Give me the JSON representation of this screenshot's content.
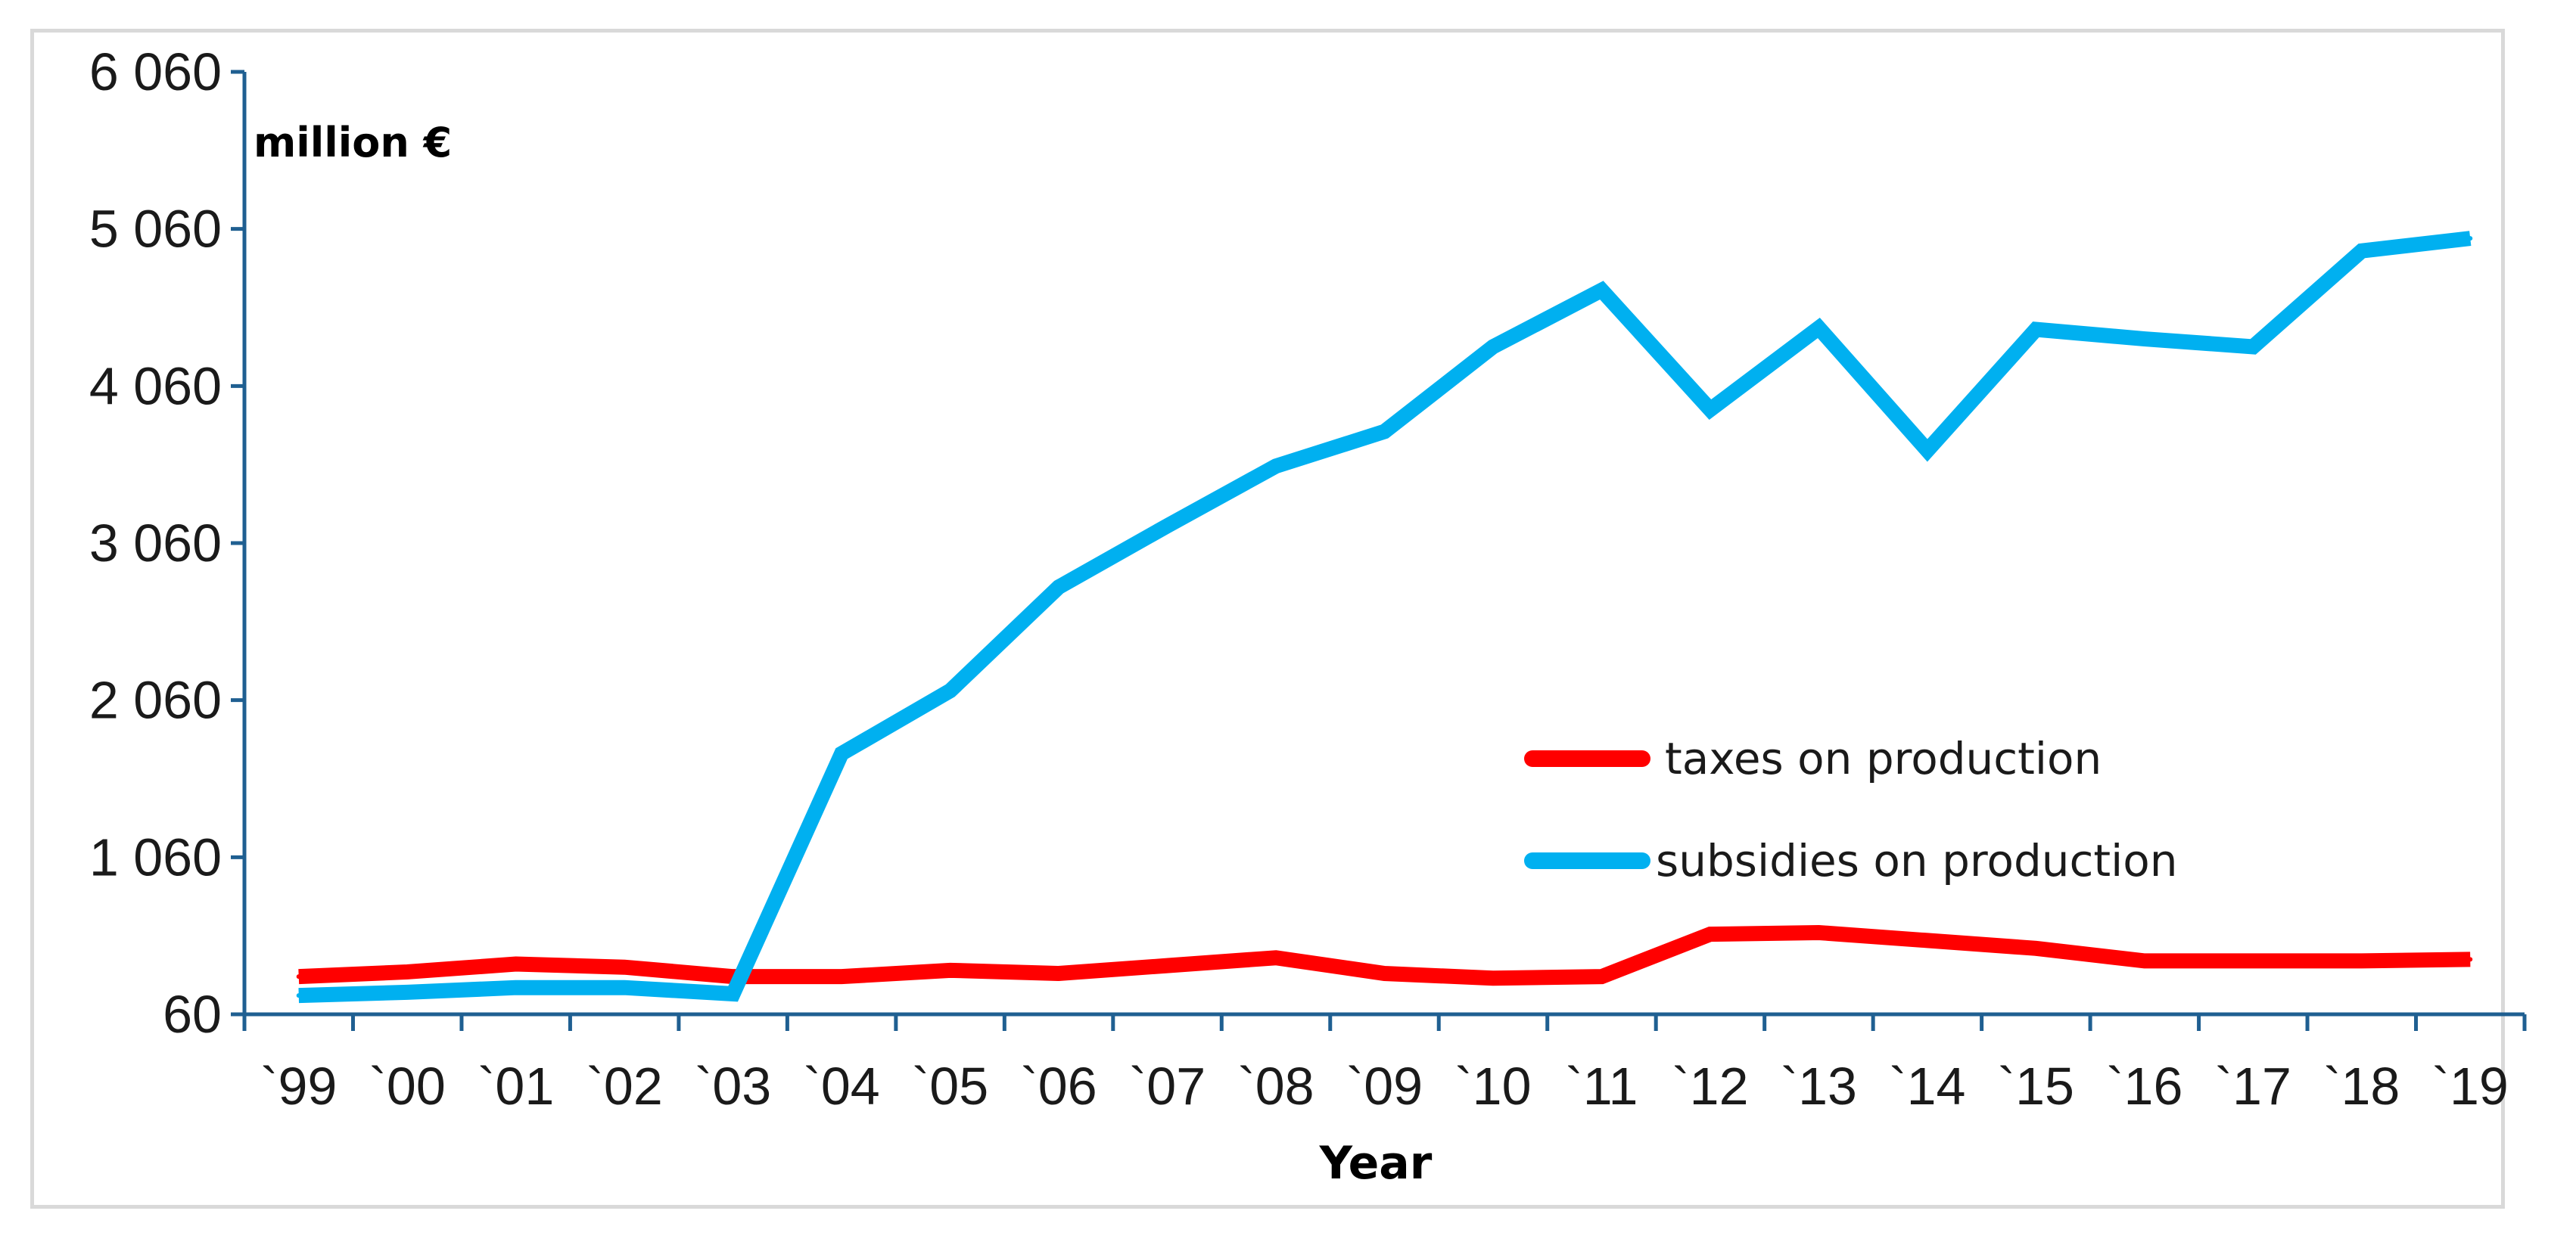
{
  "chart_data": {
    "type": "line",
    "title": "",
    "unit_label": "million €",
    "xlabel": "Year",
    "ylabel": "million €",
    "ylim": [
      60,
      6060
    ],
    "y_ticks": [
      60,
      1060,
      2060,
      3060,
      4060,
      5060,
      6060
    ],
    "y_tick_labels": [
      "60",
      "1 060",
      "2 060",
      "3 060",
      "4 060",
      "5 060",
      "6 060"
    ],
    "categories": [
      "`99",
      "`00",
      "`01",
      "`02",
      "`03",
      "`04",
      "`05",
      "`06",
      "`07",
      "`08",
      "`09",
      "`10",
      "`11",
      "`12",
      "`13",
      "`14",
      "`15",
      "`16",
      "`17",
      "`18",
      "`19"
    ],
    "grid": false,
    "legend_position": "center-right",
    "series": [
      {
        "name": "taxes on production",
        "color": "#ff0000",
        "values": [
          300,
          330,
          380,
          360,
          300,
          300,
          340,
          320,
          370,
          420,
          320,
          290,
          300,
          570,
          580,
          530,
          480,
          400,
          400,
          400,
          410
        ]
      },
      {
        "name": "subsidies on production",
        "color": "#00b0f0",
        "values": [
          180,
          200,
          230,
          230,
          190,
          1720,
          2120,
          2780,
          3170,
          3550,
          3770,
          4310,
          4670,
          3910,
          4430,
          3650,
          4420,
          4360,
          4310,
          4920,
          5000
        ]
      }
    ]
  }
}
